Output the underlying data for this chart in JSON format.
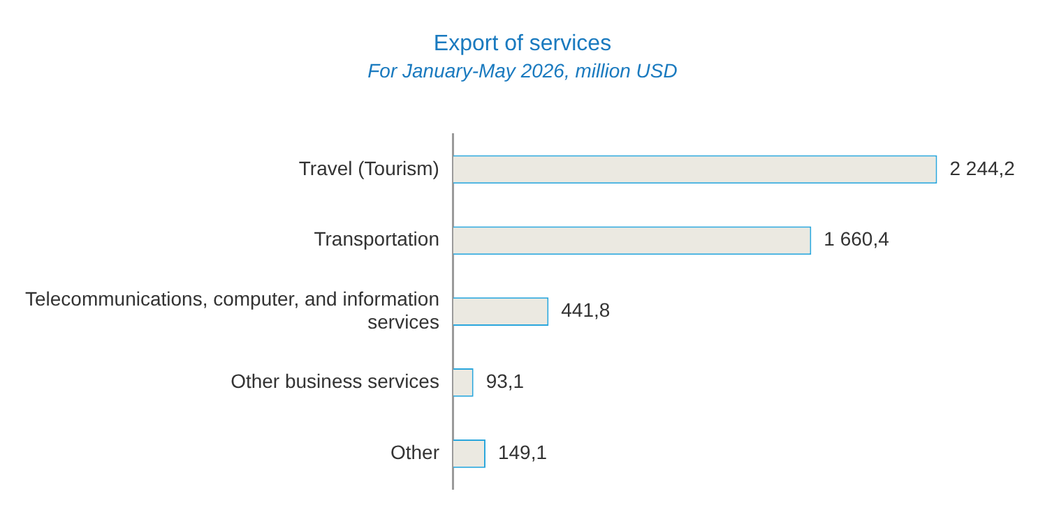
{
  "chart_data": {
    "type": "bar",
    "orientation": "horizontal",
    "title": "Export of services",
    "subtitle": "For January-May 2026, million USD",
    "categories": [
      "Travel (Tourism)",
      "Transportation",
      "Telecommunications, computer, and information services",
      "Other business services",
      "Other"
    ],
    "values": [
      2244.2,
      1660.4,
      441.8,
      93.1,
      149.1
    ],
    "value_labels": [
      "2 244,2",
      "1 660,4",
      "441,8",
      "93,1",
      "149,1"
    ],
    "color": "#ebe9e1",
    "grid": false,
    "legend": false
  }
}
